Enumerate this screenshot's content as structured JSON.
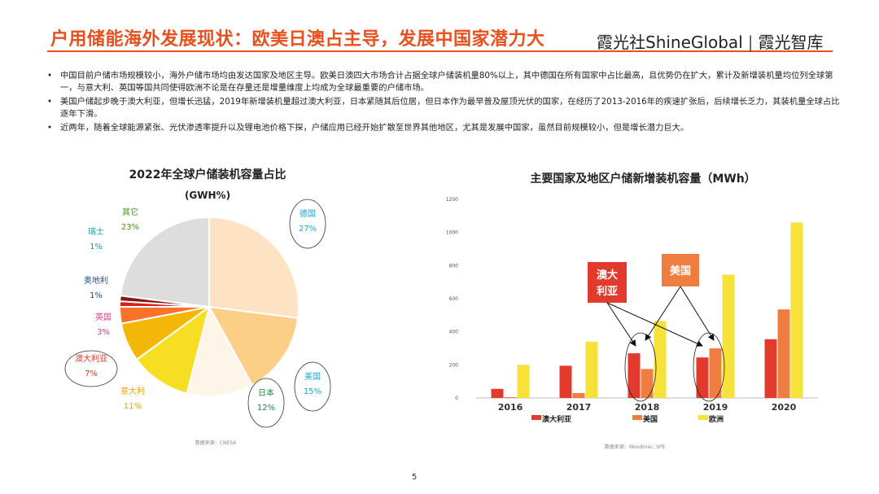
{
  "header": {
    "title": "户用储能海外发展现状：欧美日澳占主导，发展中国家潜力大",
    "brand_left": "霞光社ShineGlobal",
    "brand_sep": "|",
    "brand_right": "霞光智库"
  },
  "bullets": [
    "中国目前户储市场规模较小，海外户储市场均由发达国家及地区主导。欧美日澳四大市场合计占据全球户储装机量80%以上，其中德国在所有国家中占比最高，且优势仍在扩大，累计及新增装机量均位列全球第一，与意大利、英国等国共同使得欧洲不论是在存量还是增量维度上均成为全球最重要的户储市场。",
    "美国户储起步晚于澳大利亚，但增长迅猛，2019年新增装机量超过澳大利亚，日本紧随其后位居，但日本作为最早普及屋顶光伏的国家，在经历了2013-2016年的疾速扩张后，后续增长乏力，其装机量全球占比逐年下滑。",
    "近两年，随着全球能源紧张、光伏渗透率提升以及锂电池价格下探，户储应用已经开始扩散至世界其他地区，尤其是发展中国家，虽然目前规模较小，但是增长潜力巨大。"
  ],
  "chart_data": [
    {
      "type": "pie",
      "title": "2022年全球户储装机容量占比",
      "subtitle": "(GWH%)",
      "source": "数据来源：CNESA",
      "slices": [
        {
          "label": "德国",
          "value": 27,
          "display": "27%",
          "color": "#fde3c4",
          "label_color": "#1aa3d9",
          "circled": true
        },
        {
          "label": "美国",
          "value": 15,
          "display": "15%",
          "color": "#fbcf86",
          "label_color": "#1aa3d9",
          "circled": true
        },
        {
          "label": "日本",
          "value": 12,
          "display": "12%",
          "color": "#fdf5e8",
          "label_color": "#1a8a3a",
          "circled": true
        },
        {
          "label": "意大利",
          "value": 11,
          "display": "11%",
          "color": "#f7de22",
          "label_color": "#e8a400",
          "circled": false
        },
        {
          "label": "澳大利亚",
          "value": 7,
          "display": "7%",
          "color": "#f2b707",
          "label_color": "#e23b28",
          "circled": true
        },
        {
          "label": "英国",
          "value": 3,
          "display": "3%",
          "color": "#f9712b",
          "label_color": "#e03a8c",
          "circled": false
        },
        {
          "label": "奥地利",
          "value": 1,
          "display": "1%",
          "color": "#d71f1f",
          "label_color": "#1f4e8c",
          "circled": false
        },
        {
          "label": "瑞士",
          "value": 1,
          "display": "1%",
          "color": "#8b1414",
          "label_color": "#1a9a9a",
          "circled": false
        },
        {
          "label": "其它",
          "value": 23,
          "display": "23%",
          "color": "#dddddd",
          "label_color": "#4a8a1a",
          "circled": false
        }
      ]
    },
    {
      "type": "bar",
      "title": "主要国家及地区户储新增装机容量（MWh）",
      "source": "数据来源：Woodmac, SPE",
      "categories": [
        "2016",
        "2017",
        "2018",
        "2019",
        "2020"
      ],
      "ylim": [
        0,
        1200
      ],
      "yticks": [
        0,
        200,
        400,
        600,
        800,
        1000,
        1200
      ],
      "series": [
        {
          "name": "澳大利亚",
          "color": "#e23b2e",
          "values": [
            55,
            195,
            270,
            245,
            355
          ]
        },
        {
          "name": "美国",
          "color": "#ef7d3f",
          "values": [
            5,
            30,
            175,
            300,
            535
          ]
        },
        {
          "name": "欧洲",
          "color": "#f7e23a",
          "values": [
            200,
            340,
            465,
            745,
            1060
          ]
        }
      ],
      "callouts": [
        {
          "text": "澳大利亚",
          "color": "#e23b2e"
        },
        {
          "text": "美国",
          "color": "#ef7d3f"
        }
      ]
    }
  ],
  "page_number": "5"
}
